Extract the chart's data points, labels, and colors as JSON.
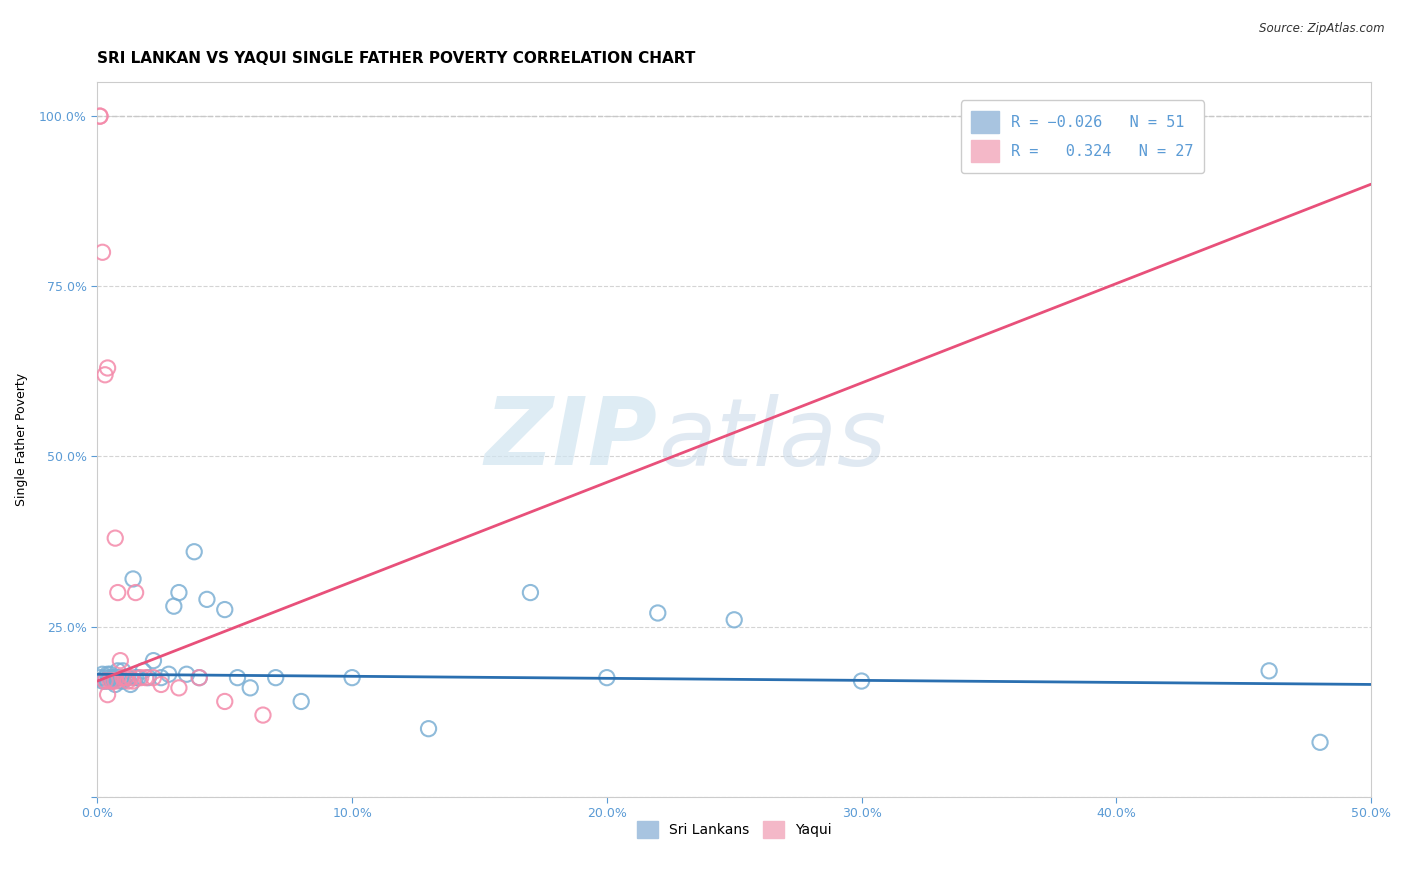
{
  "title": "SRI LANKAN VS YAQUI SINGLE FATHER POVERTY CORRELATION CHART",
  "source": "Source: ZipAtlas.com",
  "xlabel": "",
  "ylabel": "Single Father Poverty",
  "xlim": [
    0.0,
    0.5
  ],
  "ylim": [
    0.0,
    1.05
  ],
  "xticks": [
    0.0,
    0.1,
    0.2,
    0.3,
    0.4,
    0.5
  ],
  "xtick_labels": [
    "0.0%",
    "10.0%",
    "20.0%",
    "30.0%",
    "40.0%",
    "50.0%"
  ],
  "ytick_labels": [
    "",
    "25.0%",
    "50.0%",
    "75.0%",
    "100.0%"
  ],
  "yticks": [
    0.0,
    0.25,
    0.5,
    0.75,
    1.0
  ],
  "watermark_zip": "ZIP",
  "watermark_atlas": "atlas",
  "blue_color": "#7bafd4",
  "pink_color": "#f48aaa",
  "blue_line_color": "#2a6fb0",
  "pink_line_color": "#e8507a",
  "dashed_line_color": "#c8c8c8",
  "sri_lankan_x": [
    0.001,
    0.002,
    0.002,
    0.003,
    0.003,
    0.004,
    0.004,
    0.005,
    0.005,
    0.006,
    0.006,
    0.007,
    0.007,
    0.007,
    0.008,
    0.008,
    0.009,
    0.009,
    0.01,
    0.01,
    0.011,
    0.012,
    0.013,
    0.014,
    0.015,
    0.016,
    0.018,
    0.02,
    0.022,
    0.025,
    0.028,
    0.03,
    0.032,
    0.035,
    0.038,
    0.04,
    0.043,
    0.05,
    0.055,
    0.06,
    0.07,
    0.08,
    0.1,
    0.13,
    0.17,
    0.2,
    0.22,
    0.25,
    0.3,
    0.46,
    0.48
  ],
  "sri_lankan_y": [
    0.175,
    0.18,
    0.17,
    0.175,
    0.17,
    0.18,
    0.17,
    0.175,
    0.18,
    0.175,
    0.17,
    0.175,
    0.165,
    0.175,
    0.175,
    0.185,
    0.17,
    0.175,
    0.17,
    0.185,
    0.175,
    0.175,
    0.165,
    0.32,
    0.175,
    0.175,
    0.185,
    0.175,
    0.2,
    0.175,
    0.18,
    0.28,
    0.3,
    0.18,
    0.36,
    0.175,
    0.29,
    0.275,
    0.175,
    0.16,
    0.175,
    0.14,
    0.175,
    0.1,
    0.3,
    0.175,
    0.27,
    0.26,
    0.17,
    0.185,
    0.08
  ],
  "yaqui_x": [
    0.001,
    0.001,
    0.002,
    0.003,
    0.003,
    0.004,
    0.004,
    0.005,
    0.006,
    0.007,
    0.007,
    0.008,
    0.009,
    0.01,
    0.011,
    0.012,
    0.013,
    0.014,
    0.015,
    0.017,
    0.019,
    0.022,
    0.025,
    0.032,
    0.04,
    0.05,
    0.065
  ],
  "yaqui_y": [
    1.0,
    1.0,
    0.8,
    0.62,
    0.17,
    0.63,
    0.15,
    0.17,
    0.17,
    0.38,
    0.17,
    0.3,
    0.2,
    0.175,
    0.175,
    0.17,
    0.175,
    0.17,
    0.3,
    0.175,
    0.175,
    0.175,
    0.165,
    0.16,
    0.175,
    0.14,
    0.12
  ],
  "pink_line_x": [
    0.0,
    0.5
  ],
  "pink_line_y": [
    0.17,
    0.9
  ],
  "blue_line_x": [
    0.0,
    0.5
  ],
  "blue_line_y": [
    0.18,
    0.165
  ],
  "title_fontsize": 11,
  "axis_label_fontsize": 9,
  "tick_fontsize": 9,
  "legend_fontsize": 11
}
